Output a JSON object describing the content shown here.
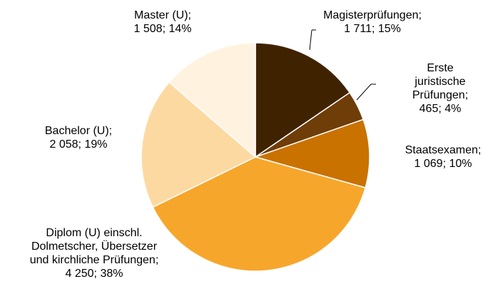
{
  "chart_data": {
    "type": "pie",
    "categories": [
      "Magisterprüfungen;",
      "Erste juristische\nPrüfungen;",
      "Staatsexamen;",
      "Diplom (U) einschl.\nDolmetscher, Übersetzer\nund kirchliche Prüfungen;",
      "Bachelor (U);",
      "Master (U);"
    ],
    "values": [
      1711,
      465,
      1069,
      4250,
      2058,
      1508
    ],
    "value_labels": [
      "1 711; 15%",
      "465; 4%",
      "1 069; 10%",
      "4 250; 38%",
      "2 058; 19%",
      "1 508; 14%"
    ],
    "colors": [
      "#3f2300",
      "#6f3d08",
      "#c97200",
      "#f7a62c",
      "#fdd9a2",
      "#fff2df"
    ]
  }
}
